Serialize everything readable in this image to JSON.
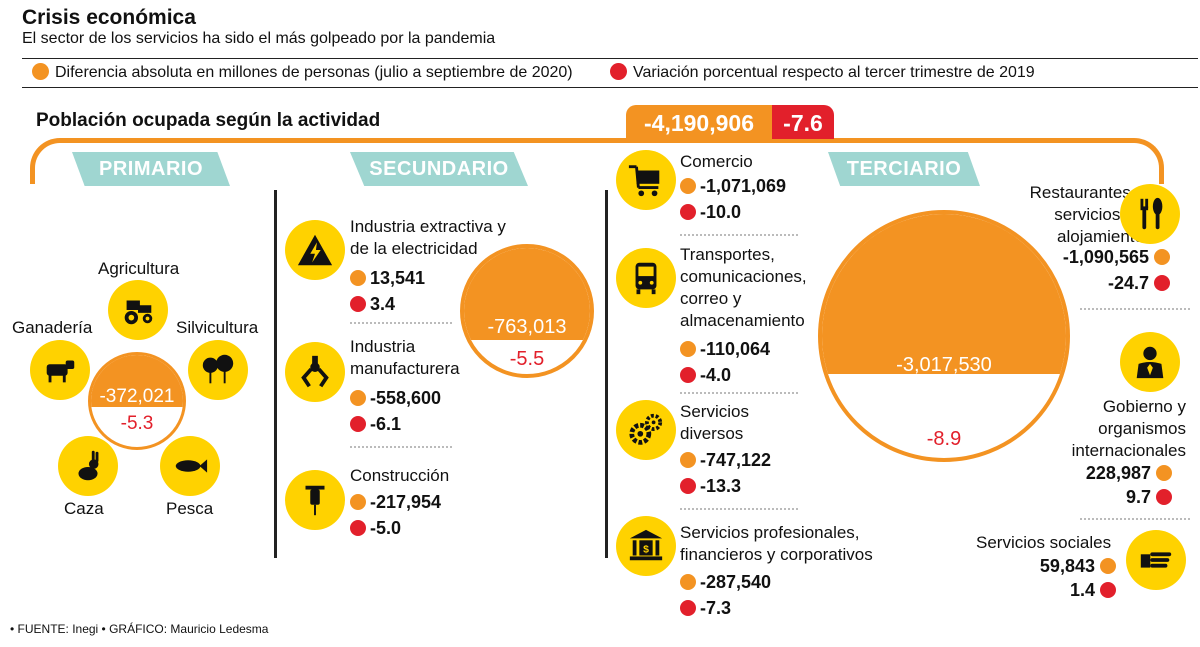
{
  "header": {
    "title": "Crisis económica",
    "subtitle": "El sector de los servicios ha sido el más golpeado por la pandemia"
  },
  "legend": {
    "orange": "Diferencia absoluta en millones de personas (julio a septiembre de 2020)",
    "red": "Variación porcentual respecto al tercer trimestre de 2019"
  },
  "colors": {
    "orange": "#f39322",
    "red": "#e2202b",
    "yellow": "#ffd200",
    "teal": "#9fd6d1"
  },
  "chart_data": {
    "type": "table",
    "title": "Población ocupada según la actividad",
    "total": {
      "absolute": "-4,190,906",
      "percent": "-7.6"
    },
    "sectors": [
      {
        "name": "PRIMARIO",
        "absolute": "-372,021",
        "percent": "-5.3",
        "activities": [
          "Agricultura",
          "Ganadería",
          "Silvicultura",
          "Caza",
          "Pesca"
        ]
      },
      {
        "name": "SECUNDARIO",
        "absolute": "-763,013",
        "percent": "-5.5",
        "activities": [
          {
            "label": "Industria extractiva y de la electricidad",
            "lines": [
              "Industria extractiva y",
              "de la electricidad"
            ],
            "absolute": "13,541",
            "percent": "3.4",
            "icon": "electricity-icon"
          },
          {
            "label": "Industria manufacturera",
            "lines": [
              "Industria",
              "manufacturera"
            ],
            "absolute": "-558,600",
            "percent": "-6.1",
            "icon": "robot-arm-icon"
          },
          {
            "label": "Construcción",
            "lines": [
              "Construcción"
            ],
            "absolute": "-217,954",
            "percent": "-5.0",
            "icon": "jackhammer-icon"
          }
        ]
      },
      {
        "name": "TERCIARIO",
        "absolute": "-3,017,530",
        "percent": "-8.9",
        "activities": [
          {
            "label": "Comercio",
            "lines": [
              "Comercio"
            ],
            "absolute": "-1,071,069",
            "percent": "-10.0",
            "icon": "shopping-cart-icon"
          },
          {
            "label": "Transportes, comunicaciones, correo y almacenamiento",
            "lines": [
              "Transportes,",
              "comunicaciones,",
              "correo y",
              "almacenamiento"
            ],
            "absolute": "-110,064",
            "percent": "-4.0",
            "icon": "bus-icon"
          },
          {
            "label": "Servicios diversos",
            "lines": [
              "Servicios",
              "diversos"
            ],
            "absolute": "-747,122",
            "percent": "-13.3",
            "icon": "gears-icon"
          },
          {
            "label": "Servicios profesionales, financieros y corporativos",
            "lines": [
              "Servicios profesionales,",
              "financieros y corporativos"
            ],
            "absolute": "-287,540",
            "percent": "-7.3",
            "icon": "bank-icon"
          },
          {
            "label": "Restaurantes y servicios de alojamiento",
            "lines": [
              "Restaurantes y",
              "servicios de",
              "alojamiento"
            ],
            "absolute": "-1,090,565",
            "percent": "-24.7",
            "icon": "fork-knife-icon"
          },
          {
            "label": "Gobierno y organismos internacionales",
            "lines": [
              "Gobierno y",
              "organismos",
              "internacionales"
            ],
            "absolute": "228,987",
            "percent": "9.7",
            "icon": "government-person-icon"
          },
          {
            "label": "Servicios sociales",
            "lines": [
              "Servicios sociales"
            ],
            "absolute": "59,843",
            "percent": "1.4",
            "icon": "hand-icon"
          }
        ]
      }
    ]
  },
  "footer": {
    "source": "• FUENTE: Inegi • GRÁFICO: Mauricio Ledesma"
  }
}
